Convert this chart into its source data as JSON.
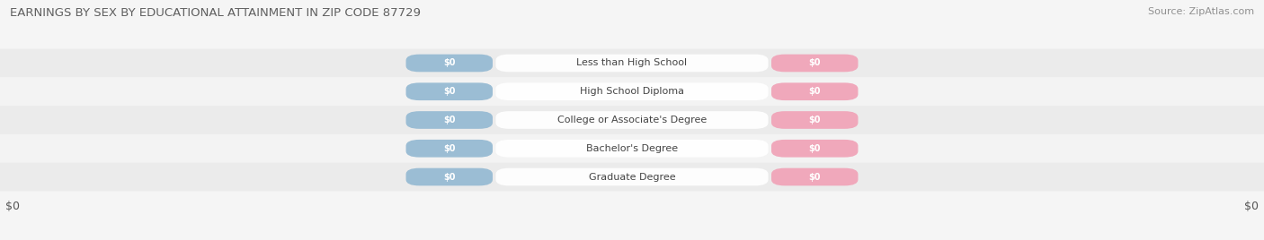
{
  "title": "EARNINGS BY SEX BY EDUCATIONAL ATTAINMENT IN ZIP CODE 87729",
  "source": "Source: ZipAtlas.com",
  "categories": [
    "Less than High School",
    "High School Diploma",
    "College or Associate's Degree",
    "Bachelor's Degree",
    "Graduate Degree"
  ],
  "male_values": [
    0,
    0,
    0,
    0,
    0
  ],
  "female_values": [
    0,
    0,
    0,
    0,
    0
  ],
  "male_color": "#9bbdd4",
  "female_color": "#f0a8bb",
  "row_colors": [
    "#ebebeb",
    "#f3f3f3",
    "#ebebeb",
    "#f3f3f3",
    "#ebebeb"
  ],
  "fig_bg": "#f5f5f5",
  "title_color": "#606060",
  "source_color": "#909090",
  "label_text_color": "#444444",
  "value_text_color": "#ffffff",
  "figsize": [
    14.06,
    2.68
  ],
  "dpi": 100,
  "x_tick_left": "$0",
  "x_tick_right": "$0"
}
